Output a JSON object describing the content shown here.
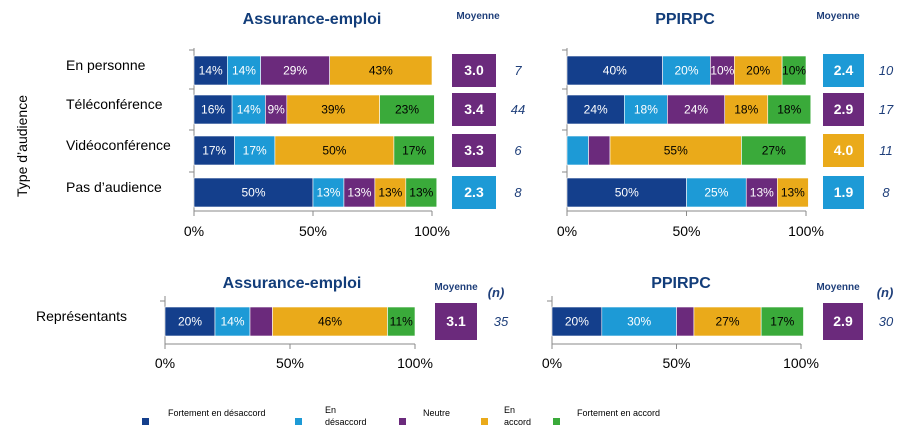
{
  "legend": [
    {
      "name": "Fortement en désaccord",
      "lines": [
        "Fortement en désaccord"
      ],
      "color": "#143f8c"
    },
    {
      "name": "En désaccord",
      "lines": [
        "En",
        "désaccord"
      ],
      "color": "#1d9ad6"
    },
    {
      "name": "Neutre",
      "lines": [
        "Neutre"
      ],
      "color": "#6b2a7c"
    },
    {
      "name": "En accord",
      "lines": [
        "En",
        "accord"
      ],
      "color": "#eaaa1a"
    },
    {
      "name": "Fortement en accord",
      "lines": [
        "Fortement en accord"
      ],
      "color": "#3aaa3a"
    }
  ],
  "y_axis_title": "Type d’audience",
  "mean_header": "Moyenne",
  "n_header": "(n)",
  "chart_data": [
    {
      "type": "bar",
      "stacked": "percent",
      "orientation": "horizontal",
      "title": "Assurance-emploi",
      "categories": [
        "En personne",
        "Téléconférence",
        "Vidéoconférence",
        "Pas d’audience"
      ],
      "xlim": [
        0,
        100
      ],
      "xticks": [
        "0%",
        "50%",
        "100%"
      ],
      "series": [
        {
          "name": "Fortement en désaccord",
          "values": [
            14,
            16,
            17,
            50
          ],
          "labels": [
            "14%",
            "16%",
            "17%",
            "50%"
          ]
        },
        {
          "name": "En désaccord",
          "values": [
            14,
            14,
            17,
            13
          ],
          "labels": [
            "14%",
            "14%",
            "17%",
            "13%"
          ]
        },
        {
          "name": "Neutre",
          "values": [
            29,
            9,
            0,
            13
          ],
          "labels": [
            "29%",
            "9%",
            "",
            "13%"
          ]
        },
        {
          "name": "En accord",
          "values": [
            43,
            39,
            50,
            13
          ],
          "labels": [
            "43%",
            "39%",
            "50%",
            "13%"
          ]
        },
        {
          "name": "Fortement en accord",
          "values": [
            0,
            23,
            17,
            13
          ],
          "labels": [
            "",
            "23%",
            "17%",
            "13%"
          ]
        }
      ],
      "means": [
        "3.0",
        "3.4",
        "3.3",
        "2.3"
      ],
      "mean_colors": [
        "#6b2a7c",
        "#6b2a7c",
        "#6b2a7c",
        "#1d9ad6"
      ],
      "n": [
        "7",
        "44",
        "6",
        "8"
      ]
    },
    {
      "type": "bar",
      "stacked": "percent",
      "orientation": "horizontal",
      "title": "PPIRPC",
      "categories": [
        "En personne",
        "Téléconférence",
        "Vidéoconférence",
        "Pas d’audience"
      ],
      "xlim": [
        0,
        100
      ],
      "xticks": [
        "0%",
        "50%",
        "100%"
      ],
      "series": [
        {
          "name": "Fortement en désaccord",
          "values": [
            40,
            24,
            0,
            50
          ],
          "labels": [
            "40%",
            "24%",
            "",
            "50%"
          ]
        },
        {
          "name": "En désaccord",
          "values": [
            20,
            18,
            9,
            25
          ],
          "labels": [
            "20%",
            "18%",
            "",
            "25%"
          ]
        },
        {
          "name": "Neutre",
          "values": [
            10,
            24,
            9,
            13
          ],
          "labels": [
            "10%",
            "24%",
            "",
            "13%"
          ]
        },
        {
          "name": "En accord",
          "values": [
            20,
            18,
            55,
            13
          ],
          "labels": [
            "20%",
            "18%",
            "55%",
            "13%"
          ]
        },
        {
          "name": "Fortement en accord",
          "values": [
            10,
            18,
            27,
            0
          ],
          "labels": [
            "10%",
            "18%",
            "27%",
            ""
          ]
        }
      ],
      "means": [
        "2.4",
        "2.9",
        "4.0",
        "1.9"
      ],
      "mean_colors": [
        "#1d9ad6",
        "#6b2a7c",
        "#eaaa1a",
        "#1d9ad6"
      ],
      "n": [
        "10",
        "17",
        "11",
        "8"
      ]
    },
    {
      "type": "bar",
      "stacked": "percent",
      "orientation": "horizontal",
      "title": "Assurance-emploi",
      "categories": [
        "Représentants"
      ],
      "xlim": [
        0,
        100
      ],
      "xticks": [
        "0%",
        "50%",
        "100%"
      ],
      "series": [
        {
          "name": "Fortement en désaccord",
          "values": [
            20
          ],
          "labels": [
            "20%"
          ]
        },
        {
          "name": "En désaccord",
          "values": [
            14
          ],
          "labels": [
            "14%"
          ]
        },
        {
          "name": "Neutre",
          "values": [
            9
          ],
          "labels": [
            ""
          ]
        },
        {
          "name": "En accord",
          "values": [
            46
          ],
          "labels": [
            "46%"
          ]
        },
        {
          "name": "Fortement en accord",
          "values": [
            11
          ],
          "labels": [
            "11%"
          ]
        }
      ],
      "means": [
        "3.1"
      ],
      "mean_colors": [
        "#6b2a7c"
      ],
      "n": [
        "35"
      ]
    },
    {
      "type": "bar",
      "stacked": "percent",
      "orientation": "horizontal",
      "title": "PPIRPC",
      "categories": [
        ""
      ],
      "xlim": [
        0,
        100
      ],
      "xticks": [
        "0%",
        "50%",
        "100%"
      ],
      "series": [
        {
          "name": "Fortement en désaccord",
          "values": [
            20
          ],
          "labels": [
            "20%"
          ]
        },
        {
          "name": "En désaccord",
          "values": [
            30
          ],
          "labels": [
            "30%"
          ]
        },
        {
          "name": "Neutre",
          "values": [
            7
          ],
          "labels": [
            ""
          ]
        },
        {
          "name": "En accord",
          "values": [
            27
          ],
          "labels": [
            "27%"
          ]
        },
        {
          "name": "Fortement en accord",
          "values": [
            17
          ],
          "labels": [
            "17%"
          ]
        }
      ],
      "means": [
        "2.9"
      ],
      "mean_colors": [
        "#6b2a7c"
      ],
      "n": [
        "30"
      ]
    }
  ]
}
